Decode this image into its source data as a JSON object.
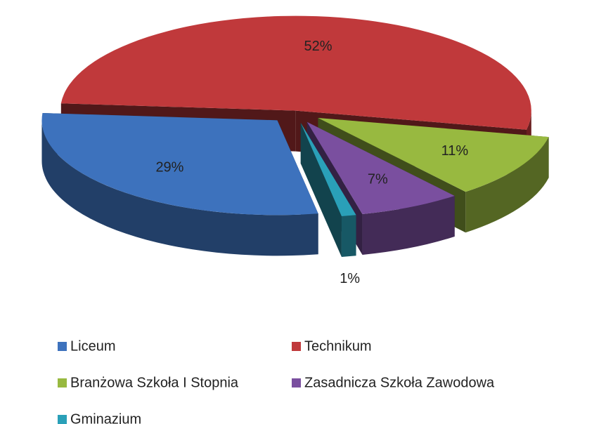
{
  "chart_data": {
    "type": "pie",
    "categories": [
      "Liceum",
      "Technikum",
      "Branżowa Szkoła I Stopnia",
      "Zasadnicza Szkoła Zawodowa",
      "Gminazjum"
    ],
    "values": [
      29,
      52,
      11,
      7,
      1
    ],
    "value_labels": [
      "29%",
      "52%",
      "11%",
      "7%",
      "1%"
    ],
    "colors": [
      "#3d72bd",
      "#c0393b",
      "#98b940",
      "#7a4f9f",
      "#2aa0b8"
    ],
    "legend": "bottom"
  }
}
